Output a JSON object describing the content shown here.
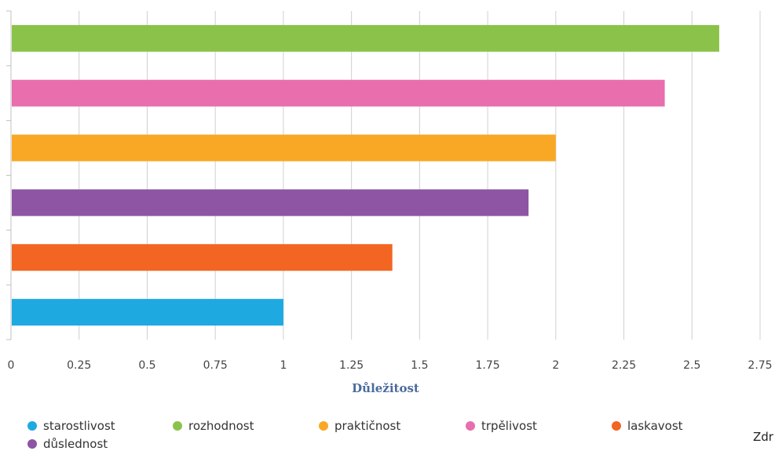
{
  "chart_data": {
    "type": "bar",
    "orientation": "horizontal",
    "categories": [
      "rozhodnost",
      "trpělivost",
      "praktičnost",
      "důslednost",
      "laskavost",
      "starostlivost"
    ],
    "values": [
      2.6,
      2.4,
      2.0,
      1.9,
      1.4,
      1.0
    ],
    "colors": [
      "#8bc34a",
      "#e86ead",
      "#f9a825",
      "#8e55a4",
      "#f26522",
      "#1fa9e1"
    ],
    "title": "",
    "xlabel": "Důležitost",
    "ylabel": "",
    "xlim": [
      0,
      2.75
    ],
    "ticks": [
      "0",
      "0.25",
      "0.5",
      "0.75",
      "1",
      "1.25",
      "1.5",
      "1.75",
      "2",
      "2.25",
      "2.5",
      "2.75"
    ],
    "grid": "vertical",
    "legend_position": "bottom"
  },
  "legend": {
    "items": [
      {
        "label": "starostlivost",
        "color": "#1fa9e1"
      },
      {
        "label": "rozhodnost",
        "color": "#8bc34a"
      },
      {
        "label": "praktičnost",
        "color": "#f9a825"
      },
      {
        "label": "trpělivost",
        "color": "#e86ead"
      },
      {
        "label": "laskavost",
        "color": "#f26522"
      },
      {
        "label": "důslednost",
        "color": "#8e55a4"
      }
    ]
  },
  "source_note": "Zdr",
  "axis_title_color": "#4a6a9b"
}
